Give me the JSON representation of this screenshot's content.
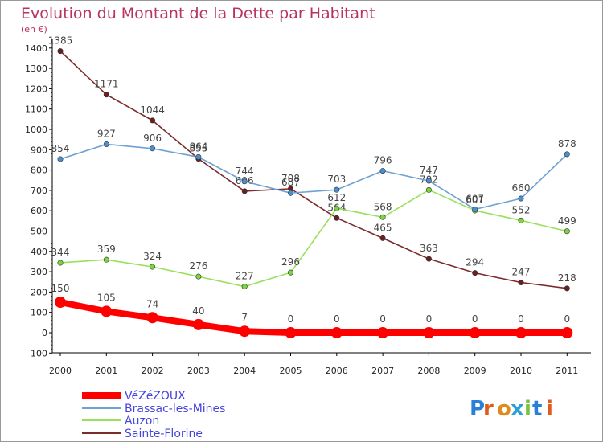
{
  "chart_data": {
    "type": "line",
    "title": "Evolution du Montant de la Dette par Habitant",
    "subtitle": "(en €)",
    "x": [
      "2000",
      "2001",
      "2002",
      "2003",
      "2004",
      "2005",
      "2006",
      "2007",
      "2008",
      "2009",
      "2010",
      "2011"
    ],
    "ylim": [
      -100,
      1400
    ],
    "yticks": [
      -100,
      0,
      100,
      200,
      300,
      400,
      500,
      600,
      700,
      800,
      900,
      1000,
      1100,
      1200,
      1300,
      1400
    ],
    "grid": false,
    "legend_position": "bottom-left",
    "series": [
      {
        "name": "VéZéZOUX",
        "color": "#ff0000",
        "marker_color": "#ff0000",
        "values": [
          150,
          105,
          74,
          40,
          7,
          0,
          0,
          0,
          0,
          0,
          0,
          0
        ],
        "labels": [
          "150",
          "105",
          "74",
          "40",
          "7",
          "0",
          "0",
          "0",
          "0",
          "0",
          "0",
          "0"
        ]
      },
      {
        "name": "Brassac-les-Mines",
        "color": "#6fa1d2",
        "marker_color": "#4a8fd4",
        "values": [
          854,
          927,
          906,
          864,
          744,
          687,
          703,
          796,
          747,
          607,
          660,
          878
        ],
        "labels": [
          "854",
          "927",
          "906",
          "864",
          "744",
          "687",
          "703",
          "796",
          "747",
          "607",
          "660",
          "878"
        ]
      },
      {
        "name": "Auzon",
        "color": "#99e05c",
        "marker_color": "#7ad63a",
        "values": [
          344,
          359,
          324,
          276,
          227,
          296,
          612,
          568,
          702,
          601,
          552,
          499
        ],
        "labels": [
          "344",
          "359",
          "324",
          "276",
          "227",
          "296",
          "612",
          "568",
          "702",
          "601",
          "552",
          "499"
        ]
      },
      {
        "name": "Sainte-Florine",
        "color": "#7a2b2b",
        "marker_color": "#6b1f1f",
        "values": [
          1385,
          1171,
          1044,
          855,
          696,
          708,
          564,
          465,
          363,
          294,
          247,
          218
        ],
        "labels": [
          "1385",
          "1171",
          "1044",
          "855",
          "696",
          "708",
          "564",
          "465",
          "363",
          "294",
          "247",
          "218"
        ]
      }
    ],
    "colors": {
      "title": "#b8345d",
      "axis": "#000000",
      "tick_label": "#222222",
      "point_label": "#444444",
      "legend_text": "#4444dd",
      "frame": "#999999"
    }
  },
  "branding": {
    "logo_text": "Proxiti"
  }
}
